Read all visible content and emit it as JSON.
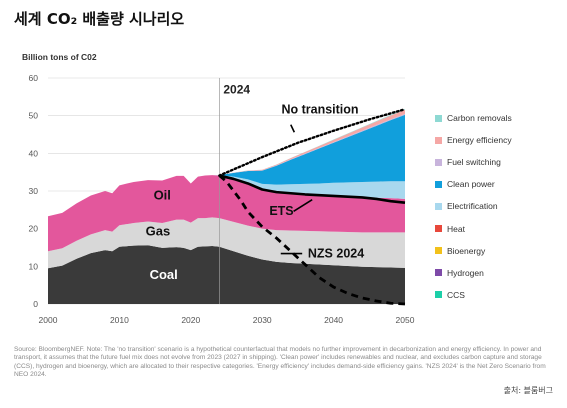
{
  "page_title": "세계 CO₂ 배출량 시나리오",
  "credit": "출처: 블룸버그",
  "note": "Source: BloombergNEF. Note: The 'no transition' scenario is a hypothetical counterfactual that models no further improvement in decarbonization and energy efficiency. In power and transport, it assumes that the future fuel mix does not evolve from 2023 (2027 in shipping). 'Clean power' includes renewables and nuclear, and excludes carbon capture and storage (CCS), hydrogen and bioenergy, which are allocated to their respective categories. 'Energy efficiency' includes demand-side efficiency gains. 'NZS 2024' is the Net Zero Scenario from NEO 2024.",
  "colors": {
    "coal": "#3a3a3a",
    "gas": "#d8d8d8",
    "oil": "#e3579c",
    "electrification": "#a8d8ee",
    "clean_power": "#119fdc",
    "fuel_switching": "#c8b4dc",
    "energy_efficiency": "#f5a7a5",
    "carbon_removals": "#8ed9d3",
    "heat": "#e8483b",
    "bioenergy": "#f2c11b",
    "hydrogen": "#7e4aa8",
    "ccs": "#1ccfa8",
    "axis_text": "#555555",
    "grid": "#d6d6d6"
  },
  "chart_data": {
    "type": "area",
    "title": "",
    "ylabel": "Billion tons of C02",
    "xlabel": "",
    "xlim": [
      2000,
      2050
    ],
    "ylim": [
      0,
      60
    ],
    "x_ticks": [
      "2000",
      "2010",
      "2020",
      "2030",
      "2040",
      "2050"
    ],
    "y_ticks": [
      "0",
      "10",
      "20",
      "30",
      "40",
      "50",
      "60"
    ],
    "grid": true,
    "legend_position": "right",
    "reference_year": 2024,
    "reference_label": "2024",
    "historical": {
      "x": [
        2000,
        2002,
        2004,
        2006,
        2008,
        2009,
        2010,
        2012,
        2014,
        2016,
        2018,
        2019,
        2020,
        2021,
        2022,
        2023,
        2024
      ],
      "coal": [
        9.5,
        10.2,
        12.0,
        13.5,
        14.3,
        14.0,
        15.2,
        15.5,
        15.6,
        14.9,
        15.1,
        14.9,
        14.3,
        15.2,
        15.3,
        15.4,
        15.2
      ],
      "gas": [
        4.5,
        4.6,
        4.8,
        5.0,
        5.3,
        5.2,
        5.7,
        6.0,
        6.3,
        6.6,
        7.3,
        7.5,
        7.3,
        7.6,
        7.5,
        7.6,
        7.6
      ],
      "oil": [
        9.3,
        9.4,
        9.9,
        10.3,
        10.4,
        10.2,
        10.6,
        10.9,
        11.0,
        11.3,
        11.6,
        11.6,
        10.4,
        11.0,
        11.3,
        11.2,
        11.3
      ]
    },
    "projection": {
      "x": [
        2024,
        2026,
        2028,
        2030,
        2032,
        2034,
        2036,
        2038,
        2040,
        2042,
        2044,
        2046,
        2048,
        2050
      ],
      "coal": [
        15.2,
        14.0,
        12.8,
        11.8,
        11.2,
        10.9,
        10.7,
        10.5,
        10.3,
        10.1,
        9.9,
        9.8,
        9.7,
        9.6
      ],
      "gas": [
        7.6,
        7.8,
        8.0,
        8.2,
        8.4,
        8.6,
        8.7,
        8.8,
        8.9,
        9.0,
        9.1,
        9.2,
        9.3,
        9.4
      ],
      "oil": [
        11.3,
        11.4,
        11.2,
        10.4,
        10.1,
        9.9,
        9.7,
        9.6,
        9.5,
        9.4,
        9.3,
        9.2,
        9.1,
        8.9
      ],
      "electrification": [
        0.1,
        0.6,
        1.1,
        1.5,
        2.0,
        2.4,
        2.8,
        3.1,
        3.5,
        3.8,
        4.1,
        4.3,
        4.5,
        4.7
      ],
      "clean_power": [
        0.0,
        1.0,
        2.2,
        3.5,
        5.0,
        6.5,
        7.9,
        9.3,
        10.6,
        12.0,
        13.4,
        14.8,
        16.2,
        17.6
      ],
      "fuel_switching": [
        0.0,
        0.03,
        0.05,
        0.08,
        0.1,
        0.12,
        0.14,
        0.16,
        0.18,
        0.2,
        0.22,
        0.24,
        0.26,
        0.28
      ],
      "energy_efficiency": [
        0.0,
        0.05,
        0.1,
        0.15,
        0.2,
        0.3,
        0.4,
        0.5,
        0.6,
        0.7,
        0.8,
        0.9,
        1.0,
        1.1
      ],
      "carbon_removals": [
        0.0,
        0.0,
        0.01,
        0.02,
        0.03,
        0.04,
        0.05,
        0.06,
        0.08,
        0.1,
        0.12,
        0.14,
        0.16,
        0.18
      ]
    },
    "series": [
      {
        "name": "Coal",
        "key": "coal",
        "label": "Coal"
      },
      {
        "name": "Gas",
        "key": "gas",
        "label": "Gas"
      },
      {
        "name": "Oil",
        "key": "oil",
        "label": "Oil"
      },
      {
        "name": "Electrification",
        "key": "electrification"
      },
      {
        "name": "Clean power",
        "key": "clean_power"
      },
      {
        "name": "Fuel switching",
        "key": "fuel_switching"
      },
      {
        "name": "Energy efficiency",
        "key": "energy_efficiency"
      },
      {
        "name": "Carbon removals",
        "key": "carbon_removals"
      }
    ],
    "lines": [
      {
        "name": "No transition",
        "style": "dotted",
        "x": [
          2024,
          2030,
          2035,
          2040,
          2045,
          2050
        ],
        "y": [
          34.1,
          39.0,
          42.8,
          46.0,
          49.0,
          51.7
        ]
      },
      {
        "name": "ETS",
        "style": "solid",
        "x": [
          2024,
          2026,
          2028,
          2030,
          2032,
          2034,
          2036,
          2038,
          2040,
          2042,
          2044,
          2046,
          2048,
          2050
        ],
        "y": [
          34.1,
          33.2,
          32.0,
          30.4,
          29.7,
          29.4,
          29.1,
          28.9,
          28.7,
          28.5,
          28.3,
          27.9,
          27.3,
          26.9
        ]
      },
      {
        "name": "NZS 2024",
        "style": "dashed",
        "x": [
          2024,
          2025,
          2026,
          2027,
          2028,
          2029,
          2030,
          2032,
          2034,
          2036,
          2038,
          2040,
          2042,
          2044,
          2046,
          2048,
          2050
        ],
        "y": [
          34.1,
          32.5,
          30.0,
          27.5,
          24.5,
          22.5,
          20.5,
          17.5,
          14.0,
          10.5,
          7.0,
          4.5,
          2.8,
          1.6,
          0.8,
          0.2,
          0.0
        ]
      }
    ],
    "annotations": [
      "No transition",
      "ETS",
      "NZS 2024"
    ],
    "legend": [
      {
        "label": "Carbon removals",
        "color_key": "carbon_removals"
      },
      {
        "label": "Energy efficiency",
        "color_key": "energy_efficiency"
      },
      {
        "label": "Fuel switching",
        "color_key": "fuel_switching"
      },
      {
        "label": "Clean power",
        "color_key": "clean_power"
      },
      {
        "label": "Electrification",
        "color_key": "electrification"
      },
      {
        "label": "Heat",
        "color_key": "heat"
      },
      {
        "label": "Bioenergy",
        "color_key": "bioenergy"
      },
      {
        "label": "Hydrogen",
        "color_key": "hydrogen"
      },
      {
        "label": "CCS",
        "color_key": "ccs"
      }
    ]
  }
}
